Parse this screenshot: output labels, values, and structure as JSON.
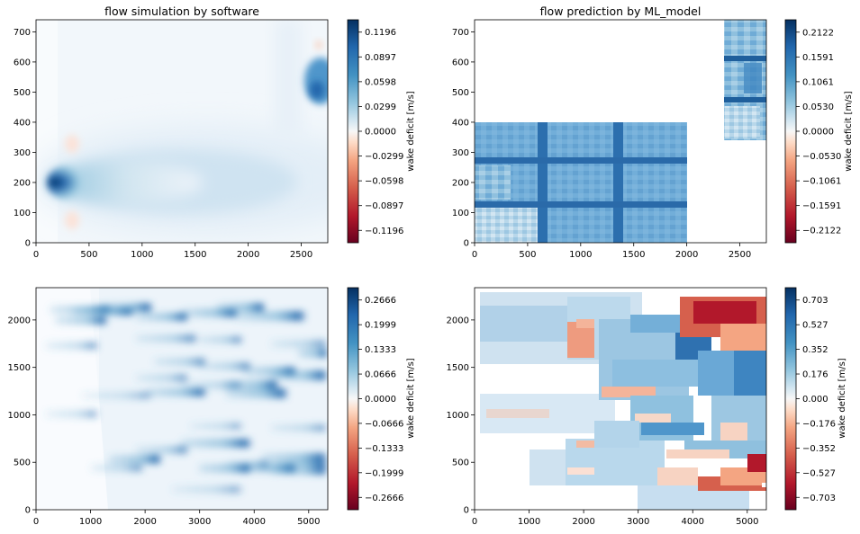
{
  "chart_data": [
    {
      "type": "heatmap",
      "title": "flow simulation by software",
      "xlabel": "",
      "ylabel": "",
      "xlim": [
        0,
        2750
      ],
      "ylim": [
        0,
        740
      ],
      "x_ticks": [
        0,
        500,
        1000,
        1500,
        2000,
        2500
      ],
      "y_ticks": [
        0,
        100,
        200,
        300,
        400,
        500,
        600,
        700
      ],
      "colormap": "RdBu",
      "colorbar": {
        "label": "wake deficit [m/s]",
        "range": [
          -0.1345,
          0.1345
        ],
        "ticks": [
          "0.1196",
          "0.0897",
          "0.0598",
          "0.0299",
          "0.0000",
          "−0.0299",
          "−0.0598",
          "−0.0897",
          "−0.1196"
        ]
      },
      "grid": false
    },
    {
      "type": "heatmap",
      "title": "flow prediction by ML_model",
      "xlabel": "",
      "ylabel": "",
      "xlim": [
        0,
        2750
      ],
      "ylim": [
        0,
        740
      ],
      "x_ticks": [
        0,
        500,
        1000,
        1500,
        2000,
        2500
      ],
      "y_ticks": [
        0,
        100,
        200,
        300,
        400,
        500,
        600,
        700
      ],
      "colormap": "RdBu",
      "colorbar": {
        "label": "wake deficit [m/s]",
        "range": [
          -0.2387,
          0.2387
        ],
        "ticks": [
          "0.2122",
          "0.1591",
          "0.1061",
          "0.0530",
          "0.0000",
          "−0.0530",
          "−0.1061",
          "−0.1591",
          "−0.2122"
        ]
      },
      "grid": false
    },
    {
      "type": "heatmap",
      "title": "",
      "xlabel": "",
      "ylabel": "",
      "xlim": [
        0,
        5350
      ],
      "ylim": [
        0,
        2340
      ],
      "x_ticks": [
        0,
        1000,
        2000,
        3000,
        4000,
        5000
      ],
      "y_ticks": [
        0,
        500,
        1000,
        1500,
        2000
      ],
      "colormap": "RdBu",
      "colorbar": {
        "label": "wake deficit [m/s]",
        "range": [
          -0.2999,
          0.2999
        ],
        "ticks": [
          "0.2666",
          "0.1999",
          "0.1333",
          "0.0666",
          "0.0000",
          "−0.0666",
          "−0.1333",
          "−0.1999",
          "−0.2666"
        ]
      },
      "grid": false
    },
    {
      "type": "heatmap",
      "title": "",
      "xlabel": "",
      "ylabel": "",
      "xlim": [
        0,
        5350
      ],
      "ylim": [
        0,
        2340
      ],
      "x_ticks": [
        0,
        1000,
        2000,
        3000,
        4000,
        5000
      ],
      "y_ticks": [
        0,
        500,
        1000,
        1500,
        2000
      ],
      "colormap": "RdBu",
      "colorbar": {
        "label": "wake deficit [m/s]",
        "range": [
          -0.791,
          0.791
        ],
        "ticks": [
          "0.703",
          "0.527",
          "0.352",
          "0.176",
          "0.000",
          "−0.176",
          "−0.352",
          "−0.527",
          "−0.703"
        ]
      },
      "grid": false
    }
  ]
}
